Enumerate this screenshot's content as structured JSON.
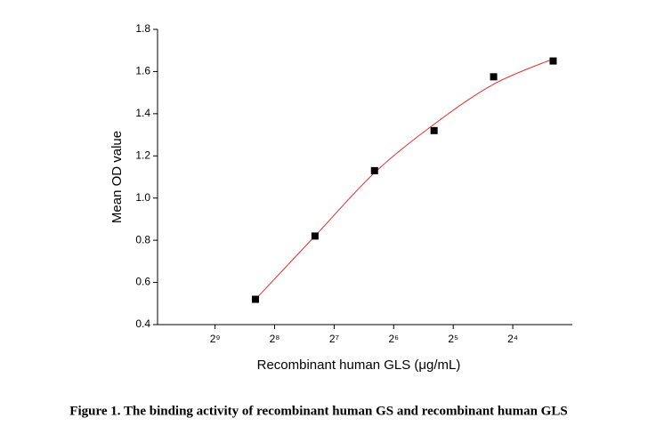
{
  "chart_data": {
    "type": "scatter",
    "caption": "Figure 1. The binding activity of recombinant human GS and recombinant human GLS",
    "xlabel": "Recombinant human GLS (μg/mL)",
    "ylabel": "Mean OD value",
    "x": [
      0.003125,
      0.00625,
      0.0125,
      0.025,
      0.05,
      0.1
    ],
    "series": [
      {
        "color": "#000000",
        "values": [
          0.52,
          0.82,
          1.13,
          1.32,
          1.575,
          1.65
        ]
      }
    ],
    "curve": {
      "color": "#e03030",
      "x": [
        0.003125,
        0.00625,
        0.0125,
        0.025,
        0.05,
        0.1
      ],
      "values": [
        0.52,
        0.82,
        1.12,
        1.35,
        1.54,
        1.66
      ]
    },
    "xscale": "log2",
    "xlim": [
      0.001,
      0.125
    ],
    "xticks": [
      {
        "value": 0.001953125,
        "label": "2⁹"
      },
      {
        "value": 0.00390625,
        "label": "2⁸"
      },
      {
        "value": 0.0078125,
        "label": "2⁷"
      },
      {
        "value": 0.015625,
        "label": "2⁶"
      },
      {
        "value": 0.03125,
        "label": "2⁵"
      },
      {
        "value": 0.0625,
        "label": "2⁴"
      }
    ],
    "ylim": [
      0.4,
      1.8
    ],
    "yticks": [
      0.4,
      0.6,
      0.8,
      {
        "value": 1.0,
        "label": "1.0"
      },
      1.2,
      1.4,
      1.6,
      1.8
    ]
  }
}
